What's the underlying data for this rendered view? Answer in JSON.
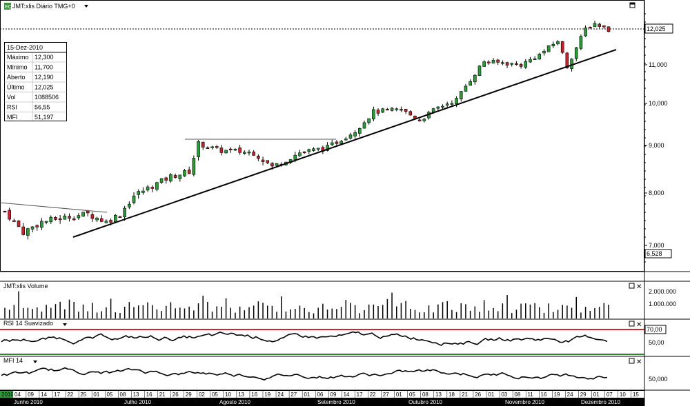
{
  "header": {
    "badge": "EQ",
    "title": "JMT:xlis Diário TMG+0",
    "menu_icon": "caret-down-icon"
  },
  "info_box": {
    "date": "15-Dez-2010",
    "rows": [
      {
        "label": "Máximo",
        "value": "12,300"
      },
      {
        "label": "Mínimo",
        "value": "11,700"
      },
      {
        "label": "Aberto",
        "value": "12,190"
      },
      {
        "label": "Último",
        "value": "12,025"
      },
      {
        "label": "Vol",
        "value": "1088506"
      },
      {
        "label": "RSI",
        "value": "56,55"
      },
      {
        "label": "MFI",
        "value": "51,197"
      }
    ]
  },
  "price_axis": {
    "ticks": [
      "12,000",
      "11,000",
      "10,000",
      "9,000",
      "8,000",
      "7,000"
    ],
    "last_value": "12,025",
    "bottom_value": "6,528"
  },
  "volume_panel": {
    "title": "JMT:xlis Volume",
    "ticks": [
      "2.000.000",
      "1.000.000"
    ]
  },
  "rsi_panel": {
    "title": "RSI 14 Suavizado",
    "ticks": [
      "70,00",
      "50,00"
    ]
  },
  "mfi_panel": {
    "title": "MFI 14",
    "ticks": [
      "50,000"
    ]
  },
  "date_axis": {
    "days": [
      "2010",
      "04",
      "09",
      "14",
      "17",
      "22",
      "25",
      "01",
      "05",
      "08",
      "13",
      "16",
      "21",
      "26",
      "29",
      "02",
      "05",
      "10",
      "13",
      "16",
      "19",
      "24",
      "27",
      "01",
      "06",
      "09",
      "14",
      "17",
      "22",
      "27",
      "01",
      "05",
      "08",
      "13",
      "18",
      "21",
      "26",
      "01",
      "03",
      "08",
      "11",
      "16",
      "19",
      "24",
      "29",
      "01",
      "07",
      "10",
      "15"
    ],
    "months": [
      "Junho 2010",
      "Julho 2010",
      "Agosto 2010",
      "Setembro 2010",
      "Outubro 2010",
      "Novembro 2010",
      "Dezembro 2010"
    ]
  },
  "colors": {
    "up": "#2e9a3a",
    "down": "#c0262c",
    "rsi_upper": "#d4242a",
    "rsi_lower": "#2e8a2e"
  },
  "chart_data": {
    "type": "candlestick",
    "price_range": [
      6.528,
      12.8
    ],
    "trendlines": [
      {
        "from": [
          "2010-06-24",
          7.2
        ],
        "to": [
          "2010-12-16",
          11.4
        ]
      },
      {
        "from": [
          "2010-06-01",
          7.82
        ],
        "to": [
          "2010-06-30",
          7.57
        ]
      }
    ],
    "resistance": {
      "from": "2010-08-02",
      "to": "2010-09-16",
      "value": 9.15
    },
    "last_price": 12.025
  }
}
